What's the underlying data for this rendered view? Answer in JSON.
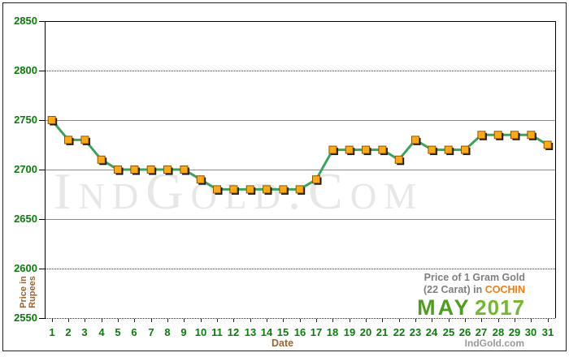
{
  "watermark": {
    "text": "IndGold.Com"
  },
  "branding": {
    "title_line1": "Price of 1 Gram Gold",
    "title_line2_prefix": "(22 Carat) in ",
    "city": "COCHIN",
    "month": "MAY",
    "year": "2017",
    "site_credit": "IndGold.com"
  },
  "axes": {
    "y_axis_label_line1": "Price in",
    "y_axis_label_line2": "Rupees",
    "x_axis_label": "Date"
  },
  "colors": {
    "line": "#3aa45d",
    "marker": "#ffaa15",
    "marker_border": "#8a5800",
    "marker_shadow": "#151515",
    "tick_label_green": "#0a7d0a",
    "axis_label_brown": "#996633",
    "city_orange": "#f07d18",
    "title_gray": "#7f7f7f",
    "month_green": "#4f9e1e",
    "year_green": "#74b830",
    "site_credit_gray": "#9a9a9a",
    "watermark_gray": "#e7e7e7",
    "grid_gray": "#8c8c8c"
  },
  "chart_data": {
    "type": "line",
    "title": "Price of 1 Gram Gold (22 Carat) in COCHIN - May 2017",
    "xlabel": "Date",
    "ylabel": "Price in Rupees",
    "categories": [
      1,
      2,
      3,
      4,
      5,
      6,
      7,
      8,
      9,
      10,
      11,
      12,
      13,
      14,
      15,
      16,
      17,
      18,
      19,
      20,
      21,
      22,
      23,
      24,
      25,
      26,
      27,
      28,
      29,
      30,
      31
    ],
    "values": [
      2750,
      2730,
      2730,
      2710,
      2700,
      2700,
      2700,
      2700,
      2700,
      2690,
      2680,
      2680,
      2680,
      2680,
      2680,
      2680,
      2690,
      2720,
      2720,
      2720,
      2720,
      2710,
      2730,
      2720,
      2720,
      2720,
      2735,
      2735,
      2735,
      2735,
      2725
    ],
    "ylim": [
      2550,
      2850
    ],
    "yticks": [
      {
        "value": 2850,
        "style": "solid_dark"
      },
      {
        "value": 2800,
        "style": "dotted"
      },
      {
        "value": 2750,
        "style": "solid"
      },
      {
        "value": 2700,
        "style": "solid"
      },
      {
        "value": 2650,
        "style": "solid"
      },
      {
        "value": 2600,
        "style": "dotted"
      },
      {
        "value": 2550,
        "style": "axis"
      }
    ],
    "grid": true,
    "legend": false
  }
}
